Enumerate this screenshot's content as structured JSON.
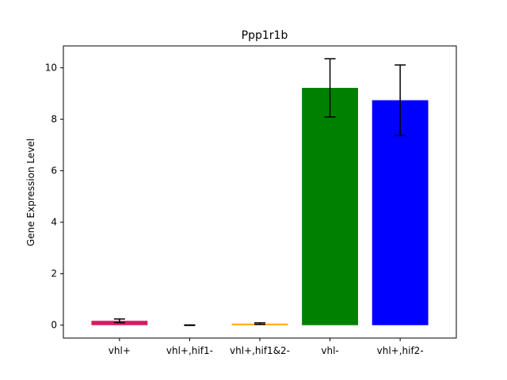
{
  "chart_data": {
    "type": "bar",
    "title": "Ppp1r1b",
    "xlabel": "",
    "ylabel": "Gene Expression Level",
    "categories": [
      "vhl+",
      "vhl+,hif1-",
      "vhl+,hif1&2-",
      "vhl-",
      "vhl+,hif2-"
    ],
    "values": [
      0.17,
      0.0,
      0.06,
      9.22,
      8.74
    ],
    "errors": [
      0.07,
      0.01,
      0.03,
      1.13,
      1.37
    ],
    "colors": [
      "#d81b60",
      "#000000",
      "#ffa500",
      "#008000",
      "#0000ff"
    ],
    "ylim": [
      -0.5,
      10.85
    ],
    "yticks": [
      "0",
      "2",
      "4",
      "6",
      "8",
      "10"
    ],
    "grid": false,
    "legend": "none"
  }
}
